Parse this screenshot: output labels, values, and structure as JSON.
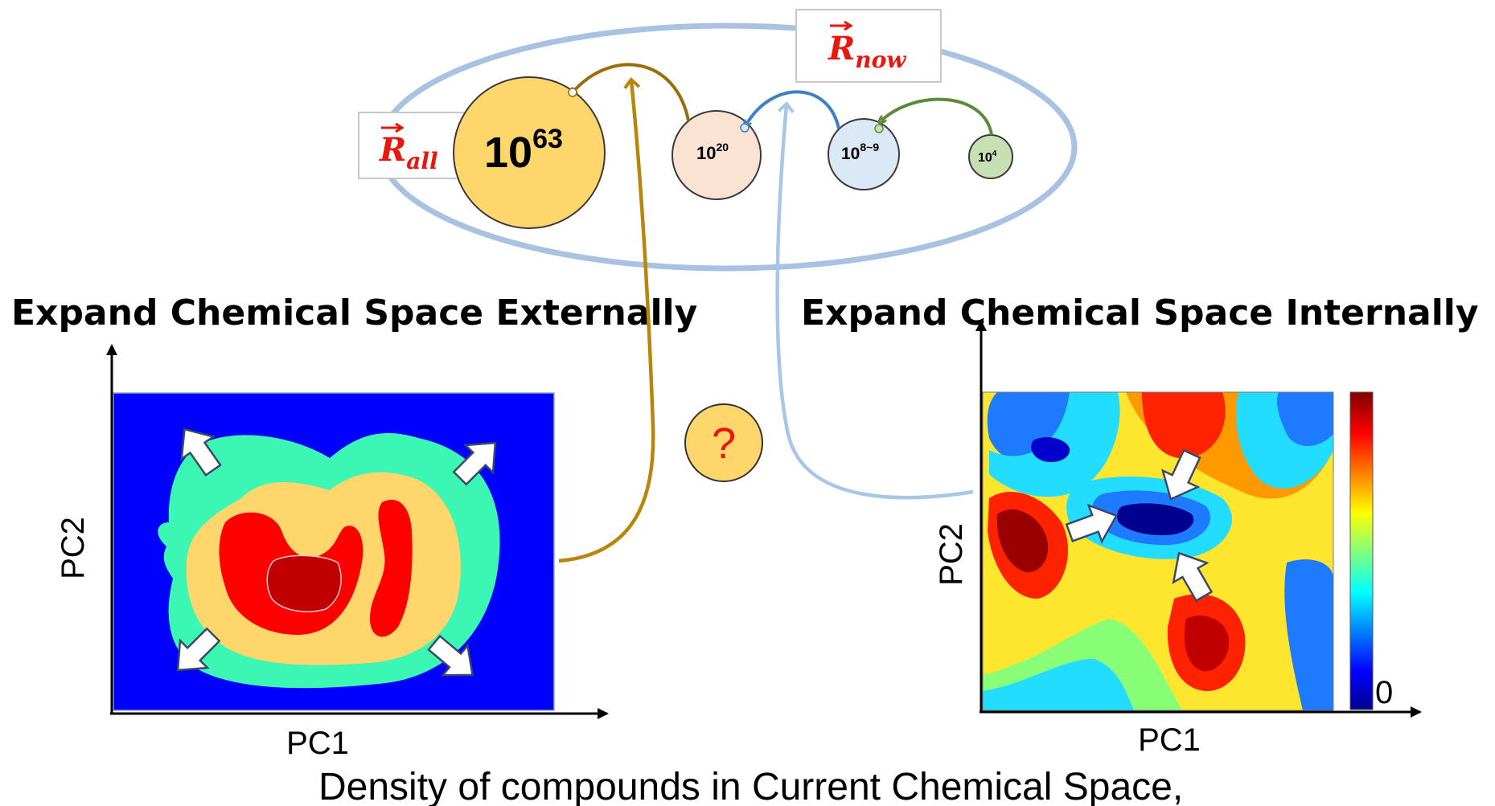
{
  "labels": {
    "r_now": {
      "base": "R",
      "sub": "now"
    },
    "r_all": {
      "base": "R",
      "sub": "all"
    }
  },
  "space_sizes": [
    {
      "base": "10",
      "exp": "63"
    },
    {
      "base": "10",
      "exp": "20"
    },
    {
      "base": "10",
      "exp": "8~9"
    },
    {
      "base": "10",
      "exp": "4"
    }
  ],
  "headings": {
    "external": "Expand Chemical Space Externally",
    "internal": "Expand Chemical Space Internally"
  },
  "left_plot": {
    "xlabel": "PC1",
    "ylabel": "PC2"
  },
  "right_plot": {
    "xlabel": "PC1",
    "ylabel": "PC2",
    "colorbar_min": "0"
  },
  "question_mark": "?",
  "footer": "Density of compounds in Current Chemical Space,",
  "colors": {
    "external_arrow": "#b8860b",
    "internal_arrow": "#a9c6e8",
    "circle_63": "#ffd66b",
    "circle_20": "#fbe3d3",
    "circle_8": "#dbe8f6",
    "circle_4": "#c6e0b4",
    "label_red": "#e8160c"
  }
}
